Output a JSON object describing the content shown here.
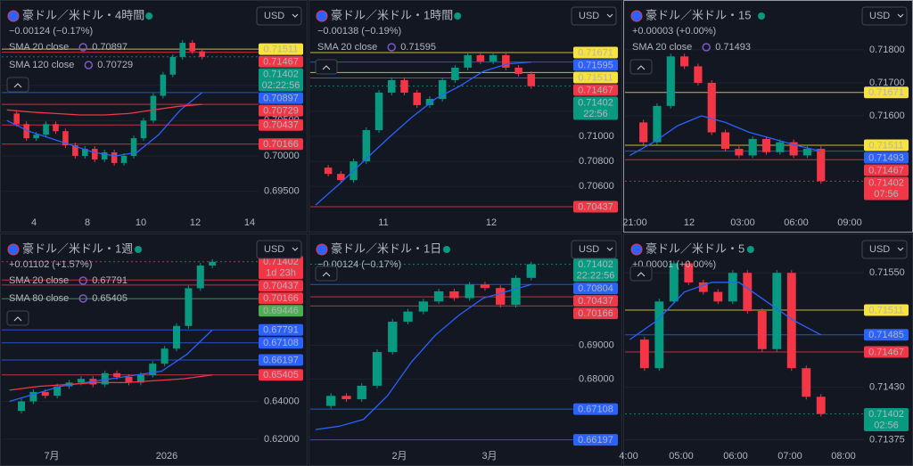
{
  "panels": [
    {
      "title": "豪ドル／米ドル・4時間",
      "change": "−0.00124 (−0.17%)",
      "change_color": "#089981",
      "currency": "USD",
      "indicators": [
        {
          "name": "SMA 20 close",
          "value": "0.70897",
          "color": "#2962ff"
        },
        {
          "name": "SMA 120 close",
          "value": "0.70729",
          "color": "#f23645"
        }
      ],
      "ylim": [
        0.6918,
        0.7208
      ],
      "yticks": [
        {
          "value": 0.71,
          "label": "0.71000"
        },
        {
          "value": 0.705,
          "label": "0.70500"
        },
        {
          "value": 0.7,
          "label": "0.70000"
        },
        {
          "value": 0.695,
          "label": "0.69500"
        }
      ],
      "xticks": [
        "4",
        "8",
        "10",
        "12",
        "14"
      ],
      "price_labels": [
        {
          "value": 0.71511,
          "label": "0.71511",
          "color": "#f7e33b"
        },
        {
          "value": 0.71467,
          "label": "0.71467",
          "color": "#f23645"
        },
        {
          "value": 0.71402,
          "label": "0.71402",
          "timer": "02:22:56",
          "color": "#089981"
        },
        {
          "value": 0.70897,
          "label": "0.70897",
          "color": "#2962ff"
        },
        {
          "value": 0.70729,
          "label": "0.70729",
          "color": "#f23645"
        },
        {
          "value": 0.70437,
          "label": "0.70437",
          "color": "#f23645"
        },
        {
          "value": 0.70166,
          "label": "0.70166",
          "color": "#f23645"
        }
      ],
      "closes": [
        0.706,
        0.7045,
        0.7025,
        0.703,
        0.7045,
        0.7035,
        0.7015,
        0.7,
        0.701,
        0.6995,
        0.7005,
        0.699,
        0.7,
        0.7025,
        0.705,
        0.7085,
        0.7115,
        0.714,
        0.716,
        0.7148,
        0.71402
      ],
      "sma": [
        {
          "color": "#2962ff",
          "values": [
            0.705,
            0.7035,
            0.7025,
            0.7015,
            0.7005,
            0.7,
            0.7005,
            0.703,
            0.7065,
            0.70897
          ]
        },
        {
          "color": "#f23645",
          "values": [
            0.7065,
            0.7062,
            0.706,
            0.7058,
            0.7058,
            0.706,
            0.7065,
            0.707,
            0.70729
          ]
        }
      ]
    },
    {
      "title": "豪ドル／米ドル・1時間",
      "change": "−0.00138 (−0.19%)",
      "change_color": "#089981",
      "currency": "USD",
      "indicators": [
        {
          "name": "SMA 20 close",
          "value": "0.71595",
          "color": "#2962ff"
        }
      ],
      "ylim": [
        0.7038,
        0.7202
      ],
      "yticks": [
        {
          "value": 0.712,
          "label": "0.71200"
        },
        {
          "value": 0.71,
          "label": "0.71000"
        },
        {
          "value": 0.708,
          "label": "0.70800"
        },
        {
          "value": 0.706,
          "label": "0.70600"
        }
      ],
      "xticks": [
        "11",
        "12"
      ],
      "price_labels": [
        {
          "value": 0.71671,
          "label": "0.71671",
          "color": "#f7e33b"
        },
        {
          "value": 0.71595,
          "label": "0.71595",
          "color": "#2962ff"
        },
        {
          "value": 0.71511,
          "label": "0.71511",
          "color": "#f7e33b"
        },
        {
          "value": 0.71467,
          "label": "0.71467",
          "color": "#f23645"
        },
        {
          "value": 0.71402,
          "label": "0.71402",
          "timer": "22:56",
          "color": "#089981"
        },
        {
          "value": 0.70437,
          "label": "0.70437",
          "color": "#f23645"
        }
      ],
      "closes": [
        0.7075,
        0.707,
        0.7065,
        0.708,
        0.7105,
        0.7135,
        0.7145,
        0.7135,
        0.7125,
        0.713,
        0.7145,
        0.7155,
        0.7165,
        0.716,
        0.7165,
        0.7155,
        0.715,
        0.71402
      ],
      "sma": [
        {
          "color": "#2962ff",
          "values": [
            0.7045,
            0.7062,
            0.708,
            0.7098,
            0.7115,
            0.713,
            0.714,
            0.7152,
            0.7158,
            0.71595
          ]
        }
      ]
    },
    {
      "title": "豪ドル／米ドル・15",
      "change": "+0.00003 (+0.00%)",
      "change_color": "#f23645",
      "currency": "USD",
      "indicators": [
        {
          "name": "SMA 20 close",
          "value": "0.71493",
          "color": "#2962ff"
        }
      ],
      "ylim": [
        0.71303,
        0.71924
      ],
      "yticks": [
        {
          "value": 0.718,
          "label": "0.71800"
        },
        {
          "value": 0.717,
          "label": "0.71700"
        },
        {
          "value": 0.716,
          "label": "0.71600"
        }
      ],
      "xticks": [
        "21:00",
        "12",
        "03:00",
        "06:00",
        "09:00"
      ],
      "price_labels": [
        {
          "value": 0.71671,
          "label": "0.71671",
          "color": "#f7e33b"
        },
        {
          "value": 0.71511,
          "label": "0.71511",
          "color": "#f7e33b"
        },
        {
          "value": 0.71493,
          "label": "0.71493",
          "color": "#2962ff"
        },
        {
          "value": 0.71467,
          "label": "0.71467",
          "color": "#f23645"
        },
        {
          "value": 0.71402,
          "label": "0.71402",
          "timer": "07:56",
          "color": "#f23645"
        }
      ],
      "closes": [
        0.7158,
        0.7152,
        0.7163,
        0.7178,
        0.7175,
        0.717,
        0.7155,
        0.715,
        0.7148,
        0.7153,
        0.7149,
        0.7152,
        0.7148,
        0.715,
        0.71402
      ],
      "sma": [
        {
          "color": "#2962ff",
          "values": [
            0.7148,
            0.7152,
            0.7157,
            0.716,
            0.7158,
            0.7155,
            0.7153,
            0.7151,
            0.71493
          ]
        }
      ]
    },
    {
      "title": "豪ドル／米ドル・1週",
      "change": "+0.01102 (+1.57%)",
      "change_color": "#f23645",
      "currency": "USD",
      "indicators": [
        {
          "name": "SMA 20 close",
          "value": "0.67791",
          "color": "#2962ff"
        },
        {
          "name": "SMA 80 close",
          "value": "0.65405",
          "color": "#f23645"
        }
      ],
      "ylim": [
        0.61571,
        0.72429
      ],
      "yticks": [
        {
          "value": 0.64,
          "label": "0.64000"
        },
        {
          "value": 0.62,
          "label": "0.62000"
        }
      ],
      "xticks": [
        "7月",
        "2026"
      ],
      "price_labels": [
        {
          "value": 0.71402,
          "label": "0.71402",
          "timer": "1d 23h",
          "color": "#f23645"
        },
        {
          "value": 0.70437,
          "label": "0.70437",
          "color": "#f23645"
        },
        {
          "value": 0.70166,
          "label": "0.70166",
          "color": "#f23645"
        },
        {
          "value": 0.69446,
          "label": "0.69446",
          "color": "#4caf50"
        },
        {
          "value": 0.67791,
          "label": "0.67791",
          "color": "#2962ff"
        },
        {
          "value": 0.67108,
          "label": "0.67108",
          "color": "#2962ff"
        },
        {
          "value": 0.66197,
          "label": "0.66197",
          "color": "#2962ff"
        },
        {
          "value": 0.65405,
          "label": "0.65405",
          "color": "#f23645"
        }
      ],
      "closes": [
        0.635,
        0.64,
        0.645,
        0.643,
        0.648,
        0.65,
        0.652,
        0.649,
        0.655,
        0.653,
        0.65,
        0.654,
        0.66,
        0.668,
        0.68,
        0.7,
        0.712,
        0.71402
      ],
      "sma": [
        {
          "color": "#2962ff",
          "values": [
            0.64,
            0.644,
            0.648,
            0.65,
            0.652,
            0.654,
            0.656,
            0.665,
            0.67791
          ]
        },
        {
          "color": "#f23645",
          "values": [
            0.646,
            0.648,
            0.649,
            0.65,
            0.65,
            0.651,
            0.652,
            0.65405
          ]
        }
      ]
    },
    {
      "title": "豪ドル／米ドル・1日",
      "change": "−0.00124 (−0.17%)",
      "change_color": "#089981",
      "currency": "USD",
      "indicators": [],
      "ylim": [
        0.65974,
        0.72053
      ],
      "yticks": [
        {
          "value": 0.69,
          "label": "0.69000"
        },
        {
          "value": 0.68,
          "label": "0.68000"
        }
      ],
      "xticks": [
        "2月",
        "3月"
      ],
      "price_labels": [
        {
          "value": 0.71402,
          "label": "0.71402",
          "timer": "22:22:56",
          "color": "#089981"
        },
        {
          "value": 0.70804,
          "label": "0.70804",
          "color": "#2962ff"
        },
        {
          "value": 0.70437,
          "label": "0.70437",
          "color": "#f23645"
        },
        {
          "value": 0.70166,
          "label": "0.70166",
          "color": "#f23645"
        },
        {
          "value": 0.67108,
          "label": "0.67108",
          "color": "#2962ff"
        },
        {
          "value": 0.66197,
          "label": "0.66197",
          "color": "#2962ff"
        }
      ],
      "closes": [
        0.672,
        0.675,
        0.674,
        0.678,
        0.688,
        0.697,
        0.7,
        0.703,
        0.706,
        0.704,
        0.708,
        0.707,
        0.702,
        0.71,
        0.71402
      ],
      "sma": [
        {
          "color": "#2962ff",
          "values": [
            0.665,
            0.666,
            0.668,
            0.675,
            0.685,
            0.693,
            0.699,
            0.704,
            0.706,
            0.70804
          ]
        }
      ]
    },
    {
      "title": "豪ドル／米ドル・5",
      "change": "+0.00001 (+0.00%)",
      "change_color": "#089981",
      "currency": "USD",
      "indicators": [],
      "ylim": [
        0.71367,
        0.71582
      ],
      "yticks": [
        {
          "value": 0.7155,
          "label": "0.71550"
        },
        {
          "value": 0.7143,
          "label": "0.71430"
        },
        {
          "value": 0.71375,
          "label": "0.71375"
        }
      ],
      "xticks": [
        "4:00",
        "05:00",
        "06:00",
        "07:00",
        "08:00"
      ],
      "price_labels": [
        {
          "value": 0.71511,
          "label": "0.71511",
          "color": "#f7e33b"
        },
        {
          "value": 0.71485,
          "label": "0.71485",
          "color": "#2962ff"
        },
        {
          "value": 0.71467,
          "label": "0.71467",
          "color": "#f23645"
        },
        {
          "value": 0.71402,
          "label": "0.71402",
          "timer": "02:56",
          "color": "#089981"
        }
      ],
      "closes": [
        0.7148,
        0.7145,
        0.7152,
        0.7156,
        0.7154,
        0.7153,
        0.7152,
        0.7155,
        0.7151,
        0.7147,
        0.7155,
        0.7145,
        0.7142,
        0.71402
      ],
      "sma": [
        {
          "color": "#2962ff",
          "values": [
            0.7148,
            0.715,
            0.7153,
            0.7154,
            0.7154,
            0.7152,
            0.715,
            0.71485
          ]
        }
      ]
    }
  ]
}
